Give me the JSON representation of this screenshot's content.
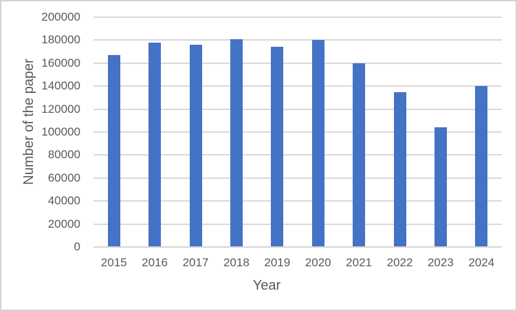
{
  "chart_data": {
    "type": "bar",
    "title": "",
    "categories": [
      "2015",
      "2016",
      "2017",
      "2018",
      "2019",
      "2020",
      "2021",
      "2022",
      "2023",
      "2024"
    ],
    "values": [
      167000,
      178000,
      176000,
      181000,
      174000,
      180500,
      160000,
      134500,
      104000,
      140000
    ],
    "xlabel": "Year",
    "ylabel": "Number of the paper",
    "ylim": [
      0,
      200000
    ],
    "ytick_step": 20000,
    "ytick_values": [
      0,
      20000,
      40000,
      60000,
      80000,
      100000,
      120000,
      140000,
      160000,
      180000,
      200000
    ],
    "ytick_labels": [
      "0",
      "20000",
      "40000",
      "60000",
      "80000",
      "100000",
      "120000",
      "140000",
      "160000",
      "180000",
      "200000"
    ],
    "grid": true,
    "legend": false,
    "colors": {
      "bar": "#4472C4",
      "gridline": "#D9D9D9",
      "axis_line": "#D6D6D6",
      "text": "#595959",
      "frame_border": "#D3D3D3",
      "background": "#FFFFFF"
    }
  }
}
